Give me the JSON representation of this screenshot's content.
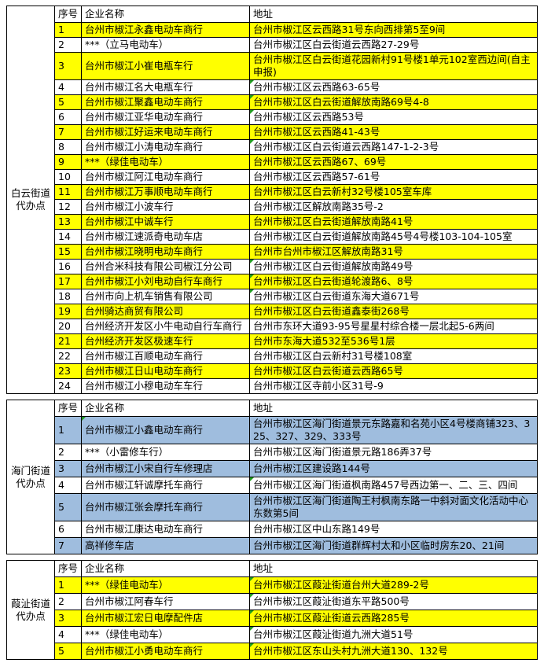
{
  "columns": {
    "seq": "序号",
    "name": "企业名称",
    "addr": "地址"
  },
  "colors": {
    "yellow": "#ffff00",
    "blue": "#9fbdde",
    "border": "#000000",
    "marker_green": "#1f9a1f"
  },
  "sections": [
    {
      "label": "白云街道\n代办点",
      "highlight_color": "#ffff00",
      "rows": [
        {
          "seq": "1",
          "name": "台州市椒江永鑫电动车商行",
          "addr": "台州市椒江区云西路31号东向西排第5至9间",
          "hl": true,
          "m": ""
        },
        {
          "seq": "2",
          "name": "***（立马电动车）",
          "addr": "台州市椒江区白云街道云西路27-29号",
          "hl": false,
          "m": ""
        },
        {
          "seq": "3",
          "name": "台州市椒江小崔电瓶车行",
          "addr": "台州市椒江区白云街道花园新村91号楼1单元102室西边间(自主申报)",
          "hl": true,
          "m": ""
        },
        {
          "seq": "4",
          "name": "台州市椒江名大电瓶车行",
          "addr": "台州市椒江区云西路63-65号",
          "hl": false,
          "m": "addr"
        },
        {
          "seq": "5",
          "name": "台州市椒江聚鑫电动车商行",
          "addr": "台州市椒江区白云街道解放南路69号4-8",
          "hl": true,
          "m": "addr"
        },
        {
          "seq": "6",
          "name": "台州市椒江亚华电动车商行",
          "addr": "台州市椒江区云西路53号",
          "hl": false,
          "m": "addr"
        },
        {
          "seq": "7",
          "name": "台州市椒江好运来电动车商行",
          "addr": "台州市椒江区云西路41-43号",
          "hl": true,
          "m": ""
        },
        {
          "seq": "8",
          "name": "台州市椒江小涛电动车商行",
          "addr": "台州市椒江区白云街道云西路147-1-2-3号",
          "hl": false,
          "m": "addr"
        },
        {
          "seq": "9",
          "name": "***（绿佳电动车）",
          "addr": "台州市椒江区云西路67、69号",
          "hl": true,
          "m": ""
        },
        {
          "seq": "10",
          "name": "台州市椒江阿江电动车商行",
          "addr": "台州市椒江区云西路57-61号",
          "hl": false,
          "m": ""
        },
        {
          "seq": "11",
          "name": "台州市椒江万事顺电动车商行",
          "addr": "台州市椒江区白云新村32号楼105室车库",
          "hl": true,
          "m": ""
        },
        {
          "seq": "12",
          "name": "台州市椒江小波车行",
          "addr": "台州市椒江区解放南路35号-2",
          "hl": false,
          "m": ""
        },
        {
          "seq": "13",
          "name": "台州市椒江中诚车行",
          "addr": "台州市椒江区白云街道解放南路41号",
          "hl": true,
          "m": ""
        },
        {
          "seq": "14",
          "name": "台州市椒江速派奇电动车店",
          "addr": "台州市椒江区白云街道解放南路45号4号楼103-104-105室",
          "hl": false,
          "m": ""
        },
        {
          "seq": "15",
          "name": "台州市椒江晓明电动车商行",
          "addr": "台州市台州市椒江区解放南路31号",
          "hl": true,
          "m": ""
        },
        {
          "seq": "16",
          "name": "台州合米科技有限公司椒江分公司",
          "addr": "台州市椒江区白云街道解放南路49号",
          "hl": false,
          "m": "addr"
        },
        {
          "seq": "17",
          "name": "台州市椒江小刘电动自行车商行",
          "addr": "台州市椒江区白云街道轮渡路6、8号",
          "hl": true,
          "m": "addr"
        },
        {
          "seq": "18",
          "name": "台州市向上机车销售有限公司",
          "addr": "台州市椒江区白云街道东海大道671号",
          "hl": false,
          "m": "addr"
        },
        {
          "seq": "19",
          "name": "台州骑达商贸有限公司",
          "addr": "台州市椒江区白云街道鑫泰街268号",
          "hl": true,
          "m": ""
        },
        {
          "seq": "20",
          "name": "台州经济开发区小牛电动自行车商行",
          "addr": "台州市东环大道93-95号星星村综合楼一层北起5-6两间",
          "hl": false,
          "m": ""
        },
        {
          "seq": "21",
          "name": "台州经济开发区极速车行",
          "addr": "台州市东海大道532至536号1层",
          "hl": true,
          "m": ""
        },
        {
          "seq": "22",
          "name": "台州市椒江百顺电动车商行",
          "addr": "台州市椒江区白云新村31号楼108室",
          "hl": false,
          "m": ""
        },
        {
          "seq": "23",
          "name": "台州市椒江日山电动车商行",
          "addr": "台州市椒江区白云街道云西路65号",
          "hl": true,
          "m": ""
        },
        {
          "seq": "24",
          "name": "台州市椒江小穆电动车车行",
          "addr": "台州市椒江区寺前小区31号-9",
          "hl": false,
          "m": ""
        }
      ]
    },
    {
      "label": "海门街道\n代办点",
      "highlight_color": "#9fbdde",
      "rows": [
        {
          "seq": "1",
          "name": "台州市椒江小鑫电动车商行",
          "addr": "台州市椒江区海门街道景元东路嘉和名苑小区4号楼商铺323、325、327、329、333号",
          "hl": true,
          "m": "name"
        },
        {
          "seq": "2",
          "name": "***（小雷修车行）",
          "addr": "台州市椒江区海门街道景元路186弄37号",
          "hl": false,
          "m": ""
        },
        {
          "seq": "3",
          "name": "台州市椒江小宋自行车修理店",
          "addr": "台州市椒江区建设路144号",
          "hl": true,
          "m": ""
        },
        {
          "seq": "4",
          "name": "台州市椒江轩诚摩托车商行",
          "addr": "台州市椒江区海门街道枫南路457号西边第一、二、三、四间",
          "hl": false,
          "m": "addr"
        },
        {
          "seq": "5",
          "name": "台州市椒江张会摩托车商行",
          "addr": "台州市椒江区海门街道陶王村枫南东路一中斜对面文化活动中心东数第5间",
          "hl": true,
          "m": ""
        },
        {
          "seq": "6",
          "name": "台州市椒江康达电动车商行",
          "addr": "台州市椒江区中山东路149号",
          "hl": false,
          "m": ""
        },
        {
          "seq": "7",
          "name": "高祥修车店",
          "addr": "台州市椒江区海门街道群辉村太和小区临时房东20、21间",
          "hl": true,
          "m": ""
        }
      ]
    },
    {
      "label": "葭沚街道\n代办点",
      "highlight_color": "#ffff00",
      "rows": [
        {
          "seq": "1",
          "name": "***（绿佳电动车）",
          "addr": "台州市椒江区葭沚街道台州大道289-2号",
          "hl": true,
          "m": "addr"
        },
        {
          "seq": "2",
          "name": "台州市椒江阿春车行",
          "addr": "台州市椒江区葭沚街道东平路500号",
          "hl": false,
          "m": "addr"
        },
        {
          "seq": "3",
          "name": "台州市椒江宏日电摩配件店",
          "addr": "台州市椒江区葭沚街道云西路285号",
          "hl": true,
          "m": "addr"
        },
        {
          "seq": "4",
          "name": "***（绿佳电动车）",
          "addr": "台州市椒江区葭沚街道九洲大道51号",
          "hl": false,
          "m": "addr"
        },
        {
          "seq": "5",
          "name": "台州市椒江小勇电动车商行",
          "addr": "台州市椒江区东山头村九洲大道130、132号",
          "hl": true,
          "m": "addr"
        }
      ]
    }
  ]
}
